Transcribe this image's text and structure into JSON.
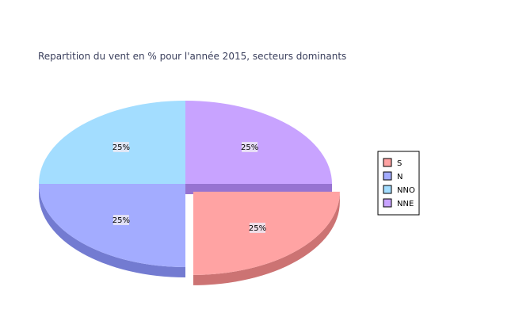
{
  "chart_data": {
    "type": "pie",
    "title": "Repartition du vent en % pour l'année 2015, secteurs dominants",
    "categories": [
      "S",
      "N",
      "NNO",
      "NNE"
    ],
    "values": [
      25,
      25,
      25,
      25
    ],
    "data_labels": [
      "25%",
      "25%",
      "25%",
      "25%"
    ],
    "exploded": [
      "S"
    ],
    "style_3d": true,
    "legend_position": "right",
    "colors": {
      "S": "#ffa3a3",
      "N": "#a3acff",
      "NNO": "#a3ddff",
      "NNE": "#c8a3ff"
    },
    "side_colors": {
      "S": "#cc7373",
      "N": "#737bd1",
      "NNO": "#73aed1",
      "NNE": "#9773d1"
    }
  }
}
